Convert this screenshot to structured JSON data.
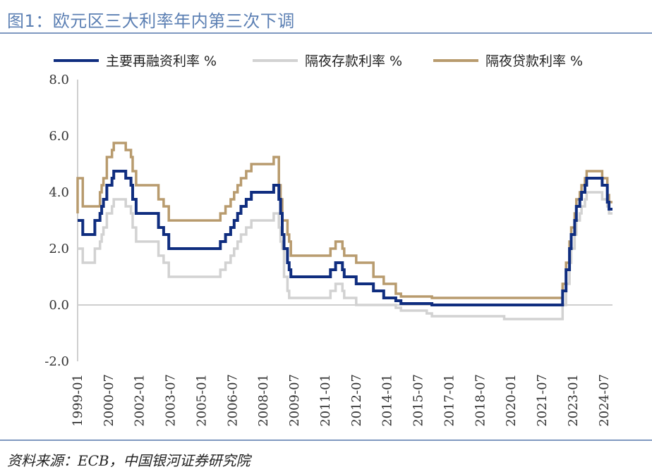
{
  "title": "图1：欧元区三大利率年内第三次下调",
  "source": "资料来源：ECB，中国银河证券研究院",
  "chart_data": {
    "type": "line",
    "title": "图1：欧元区三大利率年内第三次下调",
    "xlabel": "",
    "ylabel": "",
    "ylim": [
      -2.0,
      8.0
    ],
    "yticks": [
      "-2.0",
      "0.0",
      "2.0",
      "4.0",
      "6.0",
      "8.0"
    ],
    "xticks": [
      "1999-01",
      "2000-07",
      "2002-01",
      "2003-07",
      "2005-01",
      "2006-07",
      "2008-01",
      "2009-07",
      "2011-01",
      "2012-07",
      "2014-01",
      "2015-07",
      "2017-01",
      "2018-07",
      "2020-01",
      "2021-07",
      "2023-01",
      "2024-07"
    ],
    "legend_position": "top",
    "step": true,
    "series": [
      {
        "name": "主要再融资利率 %",
        "color": "#0f2d7f",
        "points": [
          [
            "1999-01",
            3.0
          ],
          [
            "1999-04",
            2.5
          ],
          [
            "1999-11",
            3.0
          ],
          [
            "2000-02",
            3.25
          ],
          [
            "2000-03",
            3.5
          ],
          [
            "2000-04",
            3.75
          ],
          [
            "2000-06",
            4.25
          ],
          [
            "2000-09",
            4.5
          ],
          [
            "2000-10",
            4.75
          ],
          [
            "2001-05",
            4.5
          ],
          [
            "2001-08",
            4.25
          ],
          [
            "2001-09",
            3.75
          ],
          [
            "2001-11",
            3.25
          ],
          [
            "2002-12",
            2.75
          ],
          [
            "2003-03",
            2.5
          ],
          [
            "2003-06",
            2.0
          ],
          [
            "2005-12",
            2.25
          ],
          [
            "2006-03",
            2.5
          ],
          [
            "2006-06",
            2.75
          ],
          [
            "2006-08",
            3.0
          ],
          [
            "2006-10",
            3.25
          ],
          [
            "2006-12",
            3.5
          ],
          [
            "2007-03",
            3.75
          ],
          [
            "2007-06",
            4.0
          ],
          [
            "2008-07",
            4.25
          ],
          [
            "2008-10",
            3.75
          ],
          [
            "2008-11",
            3.25
          ],
          [
            "2008-12",
            2.5
          ],
          [
            "2009-01",
            2.0
          ],
          [
            "2009-03",
            1.5
          ],
          [
            "2009-04",
            1.25
          ],
          [
            "2009-05",
            1.0
          ],
          [
            "2011-04",
            1.25
          ],
          [
            "2011-07",
            1.5
          ],
          [
            "2011-11",
            1.25
          ],
          [
            "2011-12",
            1.0
          ],
          [
            "2012-07",
            0.75
          ],
          [
            "2013-05",
            0.5
          ],
          [
            "2013-11",
            0.25
          ],
          [
            "2014-06",
            0.15
          ],
          [
            "2014-09",
            0.05
          ],
          [
            "2016-03",
            0.0
          ],
          [
            "2022-07",
            0.5
          ],
          [
            "2022-09",
            1.25
          ],
          [
            "2022-11",
            2.0
          ],
          [
            "2022-12",
            2.5
          ],
          [
            "2023-02",
            3.0
          ],
          [
            "2023-03",
            3.5
          ],
          [
            "2023-05",
            3.75
          ],
          [
            "2023-06",
            4.0
          ],
          [
            "2023-08",
            4.25
          ],
          [
            "2023-09",
            4.5
          ],
          [
            "2024-06",
            4.25
          ],
          [
            "2024-09",
            3.65
          ],
          [
            "2024-10",
            3.4
          ]
        ]
      },
      {
        "name": "隔夜存款利率 %",
        "color": "#d2d2d2",
        "points": [
          [
            "1999-01",
            2.0
          ],
          [
            "1999-04",
            1.5
          ],
          [
            "1999-11",
            2.0
          ],
          [
            "2000-02",
            2.25
          ],
          [
            "2000-03",
            2.5
          ],
          [
            "2000-04",
            2.75
          ],
          [
            "2000-06",
            3.25
          ],
          [
            "2000-09",
            3.5
          ],
          [
            "2000-10",
            3.75
          ],
          [
            "2001-05",
            3.5
          ],
          [
            "2001-08",
            3.25
          ],
          [
            "2001-09",
            2.75
          ],
          [
            "2001-11",
            2.25
          ],
          [
            "2002-12",
            1.75
          ],
          [
            "2003-03",
            1.5
          ],
          [
            "2003-06",
            1.0
          ],
          [
            "2005-12",
            1.25
          ],
          [
            "2006-03",
            1.5
          ],
          [
            "2006-06",
            1.75
          ],
          [
            "2006-08",
            2.0
          ],
          [
            "2006-10",
            2.25
          ],
          [
            "2006-12",
            2.5
          ],
          [
            "2007-03",
            2.75
          ],
          [
            "2007-06",
            3.0
          ],
          [
            "2008-07",
            3.25
          ],
          [
            "2008-10",
            2.75
          ],
          [
            "2008-11",
            2.25
          ],
          [
            "2008-12",
            2.0
          ],
          [
            "2009-01",
            1.0
          ],
          [
            "2009-03",
            0.5
          ],
          [
            "2009-04",
            0.25
          ],
          [
            "2011-04",
            0.5
          ],
          [
            "2011-07",
            0.75
          ],
          [
            "2011-11",
            0.5
          ],
          [
            "2011-12",
            0.25
          ],
          [
            "2012-07",
            0.0
          ],
          [
            "2014-06",
            -0.1
          ],
          [
            "2014-09",
            -0.2
          ],
          [
            "2015-12",
            -0.3
          ],
          [
            "2016-03",
            -0.4
          ],
          [
            "2019-09",
            -0.5
          ],
          [
            "2022-07",
            0.0
          ],
          [
            "2022-09",
            0.75
          ],
          [
            "2022-11",
            1.5
          ],
          [
            "2022-12",
            2.0
          ],
          [
            "2023-02",
            2.5
          ],
          [
            "2023-03",
            3.0
          ],
          [
            "2023-05",
            3.25
          ],
          [
            "2023-06",
            3.5
          ],
          [
            "2023-08",
            3.75
          ],
          [
            "2023-09",
            4.0
          ],
          [
            "2024-06",
            3.75
          ],
          [
            "2024-09",
            3.5
          ],
          [
            "2024-10",
            3.25
          ]
        ]
      },
      {
        "name": "隔夜贷款利率 %",
        "color": "#b89b6e",
        "points": [
          [
            "1999-01",
            3.25
          ],
          [
            "1999-01",
            4.5
          ],
          [
            "1999-04",
            3.5
          ],
          [
            "2000-02",
            3.75
          ],
          [
            "2000-02",
            4.0
          ],
          [
            "2000-03",
            4.25
          ],
          [
            "2000-04",
            4.5
          ],
          [
            "2000-06",
            5.25
          ],
          [
            "2000-09",
            5.5
          ],
          [
            "2000-10",
            5.75
          ],
          [
            "2001-05",
            5.5
          ],
          [
            "2001-08",
            5.25
          ],
          [
            "2001-09",
            4.75
          ],
          [
            "2001-11",
            4.25
          ],
          [
            "2002-12",
            3.75
          ],
          [
            "2003-03",
            3.5
          ],
          [
            "2003-06",
            3.0
          ],
          [
            "2005-12",
            3.25
          ],
          [
            "2006-03",
            3.5
          ],
          [
            "2006-06",
            3.75
          ],
          [
            "2006-08",
            4.0
          ],
          [
            "2006-10",
            4.25
          ],
          [
            "2006-12",
            4.5
          ],
          [
            "2007-03",
            4.75
          ],
          [
            "2007-06",
            5.0
          ],
          [
            "2008-07",
            5.25
          ],
          [
            "2008-10",
            4.25
          ],
          [
            "2008-11",
            3.75
          ],
          [
            "2008-12",
            3.0
          ],
          [
            "2009-01",
            3.0
          ],
          [
            "2009-03",
            2.5
          ],
          [
            "2009-04",
            2.25
          ],
          [
            "2009-05",
            1.75
          ],
          [
            "2011-04",
            2.0
          ],
          [
            "2011-07",
            2.25
          ],
          [
            "2011-11",
            2.0
          ],
          [
            "2011-12",
            1.75
          ],
          [
            "2012-07",
            1.5
          ],
          [
            "2013-05",
            1.0
          ],
          [
            "2013-11",
            0.75
          ],
          [
            "2014-06",
            0.4
          ],
          [
            "2014-09",
            0.3
          ],
          [
            "2016-03",
            0.25
          ],
          [
            "2022-07",
            0.75
          ],
          [
            "2022-09",
            1.5
          ],
          [
            "2022-11",
            2.25
          ],
          [
            "2022-12",
            2.75
          ],
          [
            "2023-02",
            3.25
          ],
          [
            "2023-03",
            3.75
          ],
          [
            "2023-05",
            4.0
          ],
          [
            "2023-06",
            4.25
          ],
          [
            "2023-08",
            4.5
          ],
          [
            "2023-09",
            4.75
          ],
          [
            "2024-06",
            4.5
          ],
          [
            "2024-09",
            3.9
          ],
          [
            "2024-10",
            3.65
          ]
        ]
      }
    ]
  }
}
